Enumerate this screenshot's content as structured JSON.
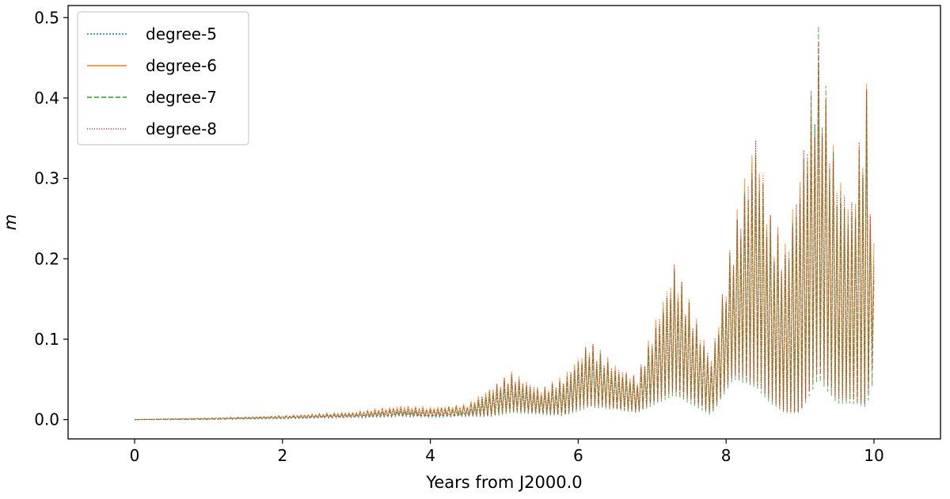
{
  "chart_data": {
    "type": "line",
    "title": "",
    "xlabel": "Years from J2000.0",
    "ylabel": "m",
    "xlim": [
      -0.9,
      10.9
    ],
    "ylim": [
      -0.024,
      0.515
    ],
    "x_ticks": [
      0,
      2,
      4,
      6,
      8,
      10
    ],
    "y_ticks": [
      0.0,
      0.1,
      0.2,
      0.3,
      0.4,
      0.5
    ],
    "x_tick_labels": [
      "0",
      "2",
      "4",
      "6",
      "8",
      "10"
    ],
    "y_tick_labels": [
      "0.0",
      "0.1",
      "0.2",
      "0.3",
      "0.4",
      "0.5"
    ],
    "grid": false,
    "legend_position": "top-left",
    "oscillation_period": 0.05,
    "envelope_x": [
      0,
      1,
      2,
      3,
      3.6,
      4,
      4.5,
      4.8,
      5.1,
      5.5,
      5.8,
      6.15,
      6.5,
      6.8,
      7.3,
      7.5,
      7.8,
      8.1,
      8.4,
      8.6,
      8.8,
      9.0,
      9.25,
      9.5,
      9.7,
      9.9,
      10.0
    ],
    "series": [
      {
        "name": "degree-5",
        "color": "#1f77b4",
        "dash": "2,2",
        "upper": [
          0,
          0.001,
          0.003,
          0.006,
          0.01,
          0.008,
          0.01,
          0.03,
          0.045,
          0.03,
          0.04,
          0.085,
          0.06,
          0.045,
          0.185,
          0.14,
          0.07,
          0.22,
          0.35,
          0.24,
          0.2,
          0.3,
          0.46,
          0.3,
          0.26,
          0.4,
          0.2
        ],
        "lower": [
          0,
          0.0,
          0.001,
          0.002,
          0.004,
          0.003,
          0.004,
          0.004,
          0.01,
          0.008,
          0.006,
          0.02,
          0.015,
          0.01,
          0.04,
          0.03,
          0.01,
          0.06,
          0.06,
          0.04,
          0.02,
          0.02,
          0.08,
          0.04,
          0.04,
          0.03,
          0.1
        ]
      },
      {
        "name": "degree-6",
        "color": "#ff7f0e",
        "dash": "",
        "upper": [
          0,
          0.002,
          0.005,
          0.01,
          0.018,
          0.016,
          0.02,
          0.04,
          0.06,
          0.04,
          0.055,
          0.1,
          0.07,
          0.055,
          0.2,
          0.15,
          0.08,
          0.24,
          0.37,
          0.26,
          0.22,
          0.32,
          0.45,
          0.32,
          0.28,
          0.42,
          0.22
        ],
        "lower": [
          0,
          0.001,
          0.002,
          0.004,
          0.006,
          0.005,
          0.006,
          0.006,
          0.012,
          0.01,
          0.008,
          0.022,
          0.016,
          0.012,
          0.04,
          0.03,
          0.01,
          0.06,
          0.05,
          0.03,
          0.01,
          0.01,
          0.07,
          0.03,
          0.03,
          0.02,
          0.12
        ]
      },
      {
        "name": "degree-7",
        "color": "#2ca02c",
        "dash": "6,3",
        "upper": [
          0,
          0.001,
          0.004,
          0.008,
          0.014,
          0.012,
          0.016,
          0.035,
          0.055,
          0.035,
          0.05,
          0.095,
          0.065,
          0.05,
          0.19,
          0.145,
          0.075,
          0.23,
          0.36,
          0.25,
          0.21,
          0.31,
          0.49,
          0.31,
          0.27,
          0.41,
          0.18
        ],
        "lower": [
          0,
          0.0,
          0.001,
          0.003,
          0.004,
          0.003,
          0.004,
          0.003,
          0.008,
          0.006,
          0.004,
          0.015,
          0.012,
          0.008,
          0.03,
          0.02,
          0.005,
          0.05,
          0.04,
          0.02,
          0.008,
          0.008,
          0.05,
          0.02,
          0.02,
          0.015,
          0.05
        ]
      },
      {
        "name": "degree-8",
        "color": "#d62728",
        "dash": "1,2",
        "upper": [
          0,
          0.002,
          0.005,
          0.009,
          0.016,
          0.014,
          0.018,
          0.038,
          0.058,
          0.038,
          0.052,
          0.098,
          0.068,
          0.052,
          0.195,
          0.148,
          0.078,
          0.235,
          0.365,
          0.255,
          0.215,
          0.315,
          0.47,
          0.315,
          0.275,
          0.415,
          0.2
        ],
        "lower": [
          0,
          0.001,
          0.002,
          0.003,
          0.005,
          0.004,
          0.005,
          0.005,
          0.01,
          0.008,
          0.006,
          0.018,
          0.014,
          0.01,
          0.035,
          0.025,
          0.008,
          0.055,
          0.045,
          0.025,
          0.01,
          0.01,
          0.06,
          0.025,
          0.025,
          0.018,
          0.08
        ]
      }
    ]
  }
}
